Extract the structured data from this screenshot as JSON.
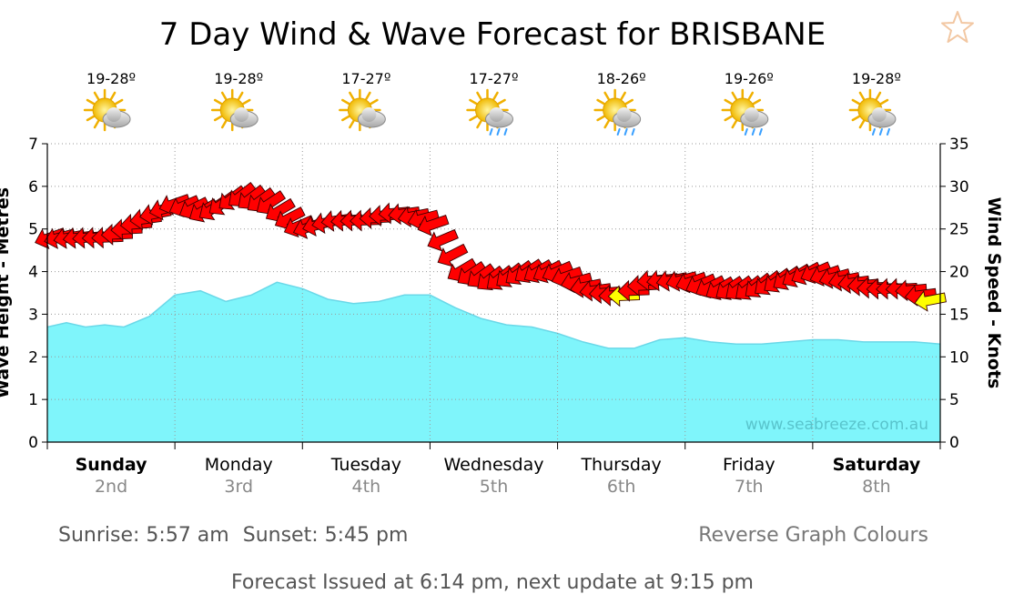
{
  "page": {
    "title": "7 Day Wind & Wave Forecast for BRISBANE",
    "favorite_icon": "star-outline-icon",
    "sunrise": "Sunrise: 5:57 am",
    "sunset": "Sunset: 5:45 pm",
    "reverse_link": "Reverse Graph Colours",
    "issued": "Forecast Issued at 6:14 pm, next update at 9:15 pm",
    "watermark": "www.seabreeze.com.au"
  },
  "days": [
    {
      "day": "Sunday",
      "date": "2nd",
      "temp": "19-28º",
      "icon": "sun-cloud-icon",
      "bold": true
    },
    {
      "day": "Monday",
      "date": "3rd",
      "temp": "19-28º",
      "icon": "sun-cloud-icon",
      "bold": false
    },
    {
      "day": "Tuesday",
      "date": "4th",
      "temp": "17-27º",
      "icon": "sun-cloud-icon",
      "bold": false
    },
    {
      "day": "Wednesday",
      "date": "5th",
      "temp": "17-27º",
      "icon": "sun-cloud-rain-icon",
      "bold": false
    },
    {
      "day": "Thursday",
      "date": "6th",
      "temp": "18-26º",
      "icon": "sun-cloud-rain-icon",
      "bold": false
    },
    {
      "day": "Friday",
      "date": "7th",
      "temp": "19-26º",
      "icon": "sun-cloud-rain-icon",
      "bold": false
    },
    {
      "day": "Saturday",
      "date": "8th",
      "temp": "19-28º",
      "icon": "sun-cloud-rain-icon",
      "bold": true
    }
  ],
  "colors": {
    "wave_fill": "#7ff5fb",
    "wave_line": "#6ad8e8",
    "wind_strong": "#ff0000",
    "wind_light": "#ffff00",
    "grid": "#9a9a9a",
    "watermark": "#59c4cc"
  },
  "chart_data": {
    "type": "area",
    "title": "7 Day Wind & Wave Forecast for BRISBANE",
    "ylabel_left": "Wave Height - Metres",
    "ylabel_right": "Wind Speed - Knots",
    "ylim_left": [
      0,
      7
    ],
    "ylim_right": [
      0,
      35
    ],
    "yticks_left": [
      0,
      1,
      2,
      3,
      4,
      5,
      6,
      7
    ],
    "yticks_right": [
      0,
      5,
      10,
      15,
      20,
      25,
      30,
      35
    ],
    "x_days": 7,
    "grid": true,
    "series": [
      {
        "name": "Wave Height",
        "axis": "left",
        "x": [
          0,
          0.15,
          0.3,
          0.45,
          0.6,
          0.8,
          1.0,
          1.2,
          1.4,
          1.6,
          1.8,
          2.0,
          2.2,
          2.4,
          2.6,
          2.8,
          3.0,
          3.2,
          3.4,
          3.6,
          3.8,
          4.0,
          4.2,
          4.4,
          4.6,
          4.8,
          5.0,
          5.2,
          5.4,
          5.6,
          5.8,
          6.0,
          6.2,
          6.4,
          6.6,
          6.8,
          7.0
        ],
        "values": [
          2.7,
          2.8,
          2.7,
          2.75,
          2.7,
          2.95,
          3.45,
          3.55,
          3.3,
          3.45,
          3.75,
          3.6,
          3.35,
          3.25,
          3.3,
          3.45,
          3.45,
          3.15,
          2.9,
          2.75,
          2.7,
          2.55,
          2.35,
          2.2,
          2.2,
          2.4,
          2.45,
          2.35,
          2.3,
          2.3,
          2.35,
          2.4,
          2.4,
          2.35,
          2.35,
          2.35,
          2.3
        ]
      },
      {
        "name": "Wind Speed",
        "axis": "right",
        "x": [
          0.0,
          0.25,
          0.5,
          0.75,
          1.0,
          1.25,
          1.5,
          1.75,
          2.0,
          2.25,
          2.5,
          2.75,
          3.0,
          3.25,
          3.5,
          3.75,
          4.0,
          4.25,
          4.5,
          4.75,
          5.0,
          5.25,
          5.5,
          5.75,
          6.0,
          6.25,
          6.5,
          6.75,
          7.0
        ],
        "values": [
          24,
          24,
          24,
          26,
          28,
          27,
          29,
          28,
          25,
          26,
          26,
          27,
          26,
          20,
          19,
          20,
          20,
          18,
          17,
          19,
          19,
          18,
          18,
          19,
          20,
          19,
          18,
          18,
          16
        ]
      }
    ]
  }
}
